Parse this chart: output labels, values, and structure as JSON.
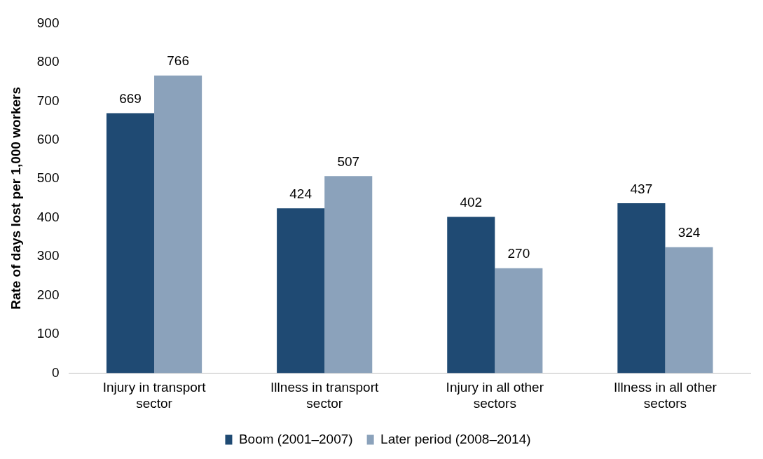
{
  "chart_data": {
    "type": "bar",
    "ylabel": "Rate of days lost per 1,000 workers",
    "categories": [
      "Injury in transport sector",
      "Illness in transport sector",
      "Injury in all other sectors",
      "Illness in all other sectors"
    ],
    "series": [
      {
        "name": "Boom (2001–2007)",
        "color": "#1f4a73",
        "values": [
          669,
          424,
          402,
          437
        ]
      },
      {
        "name": "Later period (2008–2014)",
        "color": "#8ba2bb",
        "values": [
          766,
          507,
          270,
          324
        ]
      }
    ],
    "ylim": [
      0,
      900
    ],
    "yticks": [
      0,
      100,
      200,
      300,
      400,
      500,
      600,
      700,
      800,
      900
    ],
    "grid": false,
    "legend": "bottom",
    "data_labels": true
  }
}
